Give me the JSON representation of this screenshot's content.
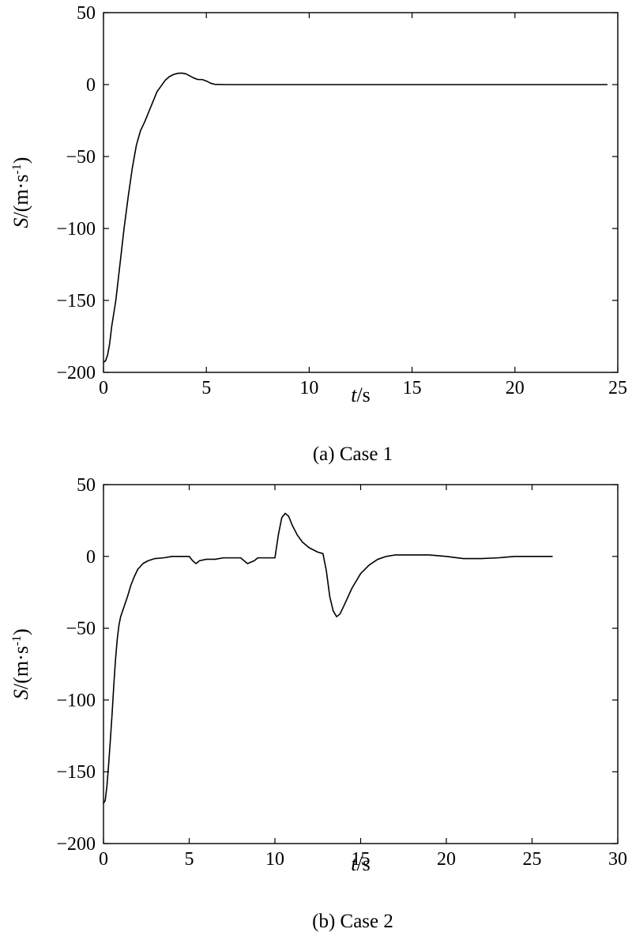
{
  "chart_data": [
    {
      "type": "line",
      "caption": "(a) Case 1",
      "xlabel_var": "t",
      "xlabel_unit": "/s",
      "ylabel_var": "S",
      "ylabel_unit_pre": "/(m·s",
      "ylabel_unit_sup": "-1",
      "ylabel_unit_post": ")",
      "xlim": [
        0,
        25
      ],
      "ylim": [
        -200,
        50
      ],
      "xticks": [
        "0",
        "5",
        "10",
        "15",
        "20",
        "25"
      ],
      "yticks": [
        "50",
        "0",
        "−50",
        "−100",
        "−150",
        "−200"
      ],
      "grid": false,
      "series": [
        {
          "x": [
            0,
            0.1,
            0.2,
            0.3,
            0.4,
            0.6,
            0.8,
            1.0,
            1.2,
            1.4,
            1.6,
            1.8,
            2.0,
            2.2,
            2.4,
            2.6,
            2.8,
            3.0,
            3.2,
            3.4,
            3.6,
            3.8,
            4.0,
            4.2,
            4.4,
            4.6,
            4.8,
            5.0,
            5.2,
            5.4,
            6,
            10,
            15,
            20,
            24.5
          ],
          "y": [
            -193,
            -192,
            -188,
            -180,
            -168,
            -150,
            -125,
            -100,
            -78,
            -58,
            -42,
            -32,
            -26,
            -19,
            -12,
            -5,
            -1,
            3,
            5.5,
            7,
            7.8,
            8,
            7.5,
            6,
            4.5,
            3.5,
            3.5,
            2.5,
            1,
            0.2,
            0,
            0,
            0,
            0,
            0
          ]
        }
      ]
    },
    {
      "type": "line",
      "caption": "(b) Case 2",
      "xlabel_var": "t",
      "xlabel_unit": "/s",
      "ylabel_var": "S",
      "ylabel_unit_pre": "/(m·s",
      "ylabel_unit_sup": "-1",
      "ylabel_unit_post": ")",
      "xlim": [
        0,
        30
      ],
      "ylim": [
        -200,
        50
      ],
      "xticks": [
        "0",
        "5",
        "10",
        "15",
        "20",
        "25",
        "30"
      ],
      "yticks": [
        "50",
        "0",
        "−50",
        "−100",
        "−150",
        "−200"
      ],
      "grid": false,
      "series": [
        {
          "x": [
            0,
            0.1,
            0.2,
            0.3,
            0.4,
            0.5,
            0.6,
            0.7,
            0.8,
            0.9,
            1.0,
            1.2,
            1.4,
            1.6,
            1.8,
            2.0,
            2.3,
            2.6,
            3.0,
            3.5,
            4.0,
            4.5,
            5.0,
            5.2,
            5.4,
            5.6,
            6.0,
            6.5,
            7.0,
            8.0,
            8.2,
            8.4,
            8.8,
            9.0,
            10.0,
            10.2,
            10.4,
            10.6,
            10.8,
            11.0,
            11.3,
            11.6,
            12.0,
            12.5,
            12.8,
            13.0,
            13.2,
            13.4,
            13.6,
            13.8,
            14.0,
            14.5,
            15.0,
            15.5,
            16.0,
            16.5,
            17.0,
            18.0,
            19.0,
            20.0,
            21.0,
            22.0,
            23.0,
            24.0,
            25.0,
            26.2
          ],
          "y": [
            -172,
            -170,
            -160,
            -145,
            -128,
            -110,
            -90,
            -72,
            -58,
            -48,
            -42,
            -35,
            -28,
            -20,
            -14,
            -9,
            -5,
            -3,
            -1.5,
            -1,
            0,
            0,
            0,
            -3,
            -5,
            -3,
            -2,
            -2,
            -1,
            -1,
            -3,
            -5,
            -3,
            -1,
            -1,
            15,
            27,
            30,
            28,
            22,
            15,
            10,
            6,
            3,
            2,
            -10,
            -28,
            -38,
            -42,
            -40,
            -35,
            -22,
            -12,
            -6,
            -2,
            0,
            1,
            1,
            1,
            0,
            -1.5,
            -1.5,
            -1,
            0,
            0,
            0
          ]
        }
      ]
    }
  ]
}
